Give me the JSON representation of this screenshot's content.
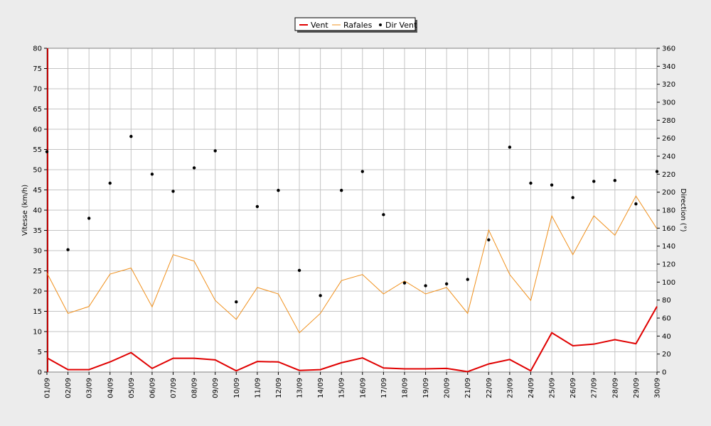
{
  "chart_data": {
    "type": "line",
    "x": [
      "01/09",
      "02/09",
      "03/09",
      "04/09",
      "05/09",
      "06/09",
      "07/09",
      "08/09",
      "09/09",
      "10/09",
      "11/09",
      "12/09",
      "13/09",
      "14/09",
      "15/09",
      "16/09",
      "17/09",
      "18/09",
      "19/09",
      "20/09",
      "21/09",
      "22/09",
      "23/09",
      "24/09",
      "25/09",
      "26/09",
      "27/09",
      "28/09",
      "29/09",
      "30/09"
    ],
    "ylabel": "Vitesse (km/h)",
    "ylabel_right": "Direction (°)",
    "ylim": [
      0,
      80
    ],
    "ylim_right": [
      0,
      360
    ],
    "yticks": [
      0,
      5,
      10,
      15,
      20,
      25,
      30,
      35,
      40,
      45,
      50,
      55,
      60,
      65,
      70,
      75,
      80
    ],
    "yticks_right": [
      0,
      20,
      40,
      60,
      80,
      100,
      120,
      140,
      160,
      180,
      200,
      220,
      240,
      260,
      280,
      300,
      320,
      340,
      360
    ],
    "grid": true,
    "legend_position": "top-center",
    "colors": {
      "vent": "#e00000",
      "rafales": "#f0901c",
      "dir": "#000000",
      "background": "#ececec",
      "plot": "#ffffff",
      "grid": "#c4c4c4"
    },
    "series": [
      {
        "name": "Vent",
        "axis": "left",
        "style": "line",
        "values": [
          3.5,
          0.6,
          0.6,
          2.5,
          4.8,
          0.9,
          3.4,
          3.4,
          3.0,
          0.3,
          2.6,
          2.5,
          0.4,
          0.6,
          2.3,
          3.5,
          1.0,
          0.8,
          0.8,
          0.9,
          0.1,
          2.0,
          3.1,
          0.3,
          9.7,
          6.5,
          6.9,
          8.0,
          7.0,
          16.2
        ]
      },
      {
        "name": "Rafales",
        "axis": "left",
        "style": "line",
        "values": [
          24.5,
          14.5,
          16.2,
          24.2,
          25.7,
          16.1,
          29.0,
          27.4,
          17.7,
          13.0,
          20.9,
          19.3,
          9.7,
          14.5,
          22.6,
          24.1,
          19.3,
          22.5,
          19.3,
          20.9,
          14.5,
          35.1,
          24.1,
          17.7,
          38.6,
          29.0,
          38.6,
          33.8,
          43.5,
          35.4
        ]
      },
      {
        "name": "Dir Vent",
        "axis": "right",
        "style": "points",
        "values": [
          245,
          136,
          171,
          210,
          262,
          220,
          201,
          227,
          246,
          78,
          184,
          202,
          113,
          85,
          202,
          223,
          175,
          99,
          96,
          98,
          103,
          147,
          250,
          210,
          208,
          194,
          212,
          213,
          187,
          223
        ]
      }
    ]
  }
}
